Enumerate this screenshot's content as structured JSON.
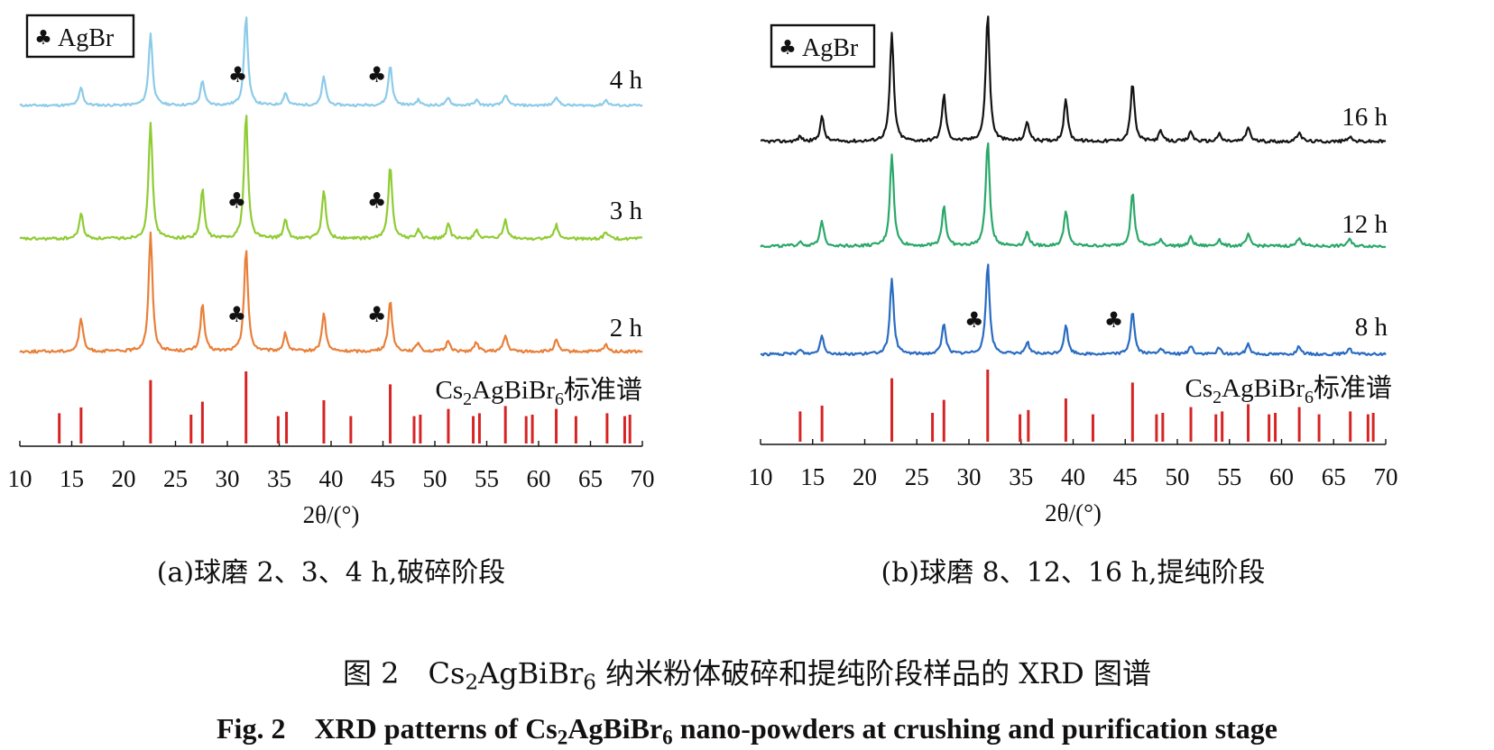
{
  "colors": {
    "h2": "#e8803a",
    "h3": "#8fcc34",
    "h4": "#8ccbe8",
    "h8": "#2a6cc2",
    "h12": "#2aa86a",
    "h16": "#141414",
    "ref": "#d62424"
  },
  "marker_glyph": "♣",
  "chart_data": [
    {
      "type": "line",
      "subtitle": "(a)球磨 2、3、4 h,破碎阶段",
      "xlabel": "2θ/(°)",
      "xlim": [
        10,
        70
      ],
      "xticks": [
        10,
        15,
        20,
        25,
        30,
        35,
        40,
        45,
        50,
        55,
        60,
        65,
        70
      ],
      "legend": {
        "symbol": "♣",
        "label": "AgBr",
        "placement": "top-left"
      },
      "reference": {
        "label_parts": [
          "Cs",
          "2",
          "AgBiBr",
          "6",
          "标准谱"
        ],
        "peaks": [
          {
            "x": 13.8,
            "h": 0.42
          },
          {
            "x": 15.9,
            "h": 0.5
          },
          {
            "x": 22.6,
            "h": 0.88
          },
          {
            "x": 26.5,
            "h": 0.4
          },
          {
            "x": 27.6,
            "h": 0.58
          },
          {
            "x": 31.8,
            "h": 1.0
          },
          {
            "x": 34.9,
            "h": 0.38
          },
          {
            "x": 35.7,
            "h": 0.44
          },
          {
            "x": 39.3,
            "h": 0.6
          },
          {
            "x": 41.9,
            "h": 0.38
          },
          {
            "x": 45.7,
            "h": 0.82
          },
          {
            "x": 48.0,
            "h": 0.38
          },
          {
            "x": 48.6,
            "h": 0.4
          },
          {
            "x": 51.3,
            "h": 0.48
          },
          {
            "x": 53.7,
            "h": 0.38
          },
          {
            "x": 54.3,
            "h": 0.42
          },
          {
            "x": 56.8,
            "h": 0.52
          },
          {
            "x": 58.8,
            "h": 0.38
          },
          {
            "x": 59.4,
            "h": 0.4
          },
          {
            "x": 61.7,
            "h": 0.48
          },
          {
            "x": 63.6,
            "h": 0.38
          },
          {
            "x": 66.6,
            "h": 0.42
          },
          {
            "x": 68.3,
            "h": 0.38
          },
          {
            "x": 68.8,
            "h": 0.4
          }
        ]
      },
      "series": [
        {
          "name": "4 h",
          "color_key": "h4",
          "peaks": [
            [
              15.9,
              0.2
            ],
            [
              22.6,
              0.8
            ],
            [
              27.6,
              0.28
            ],
            [
              31.8,
              1.0
            ],
            [
              35.6,
              0.14
            ],
            [
              39.3,
              0.32
            ],
            [
              45.7,
              0.45
            ],
            [
              48.4,
              0.06
            ],
            [
              51.3,
              0.08
            ],
            [
              54.0,
              0.06
            ],
            [
              56.8,
              0.12
            ],
            [
              61.7,
              0.1
            ],
            [
              66.5,
              0.06
            ]
          ],
          "markers": [
            31.0,
            44.4
          ]
        },
        {
          "name": "3 h",
          "color_key": "h3",
          "peaks": [
            [
              15.9,
              0.22
            ],
            [
              22.6,
              1.0
            ],
            [
              27.6,
              0.42
            ],
            [
              31.8,
              1.08
            ],
            [
              35.6,
              0.16
            ],
            [
              39.3,
              0.42
            ],
            [
              45.7,
              0.64
            ],
            [
              48.4,
              0.08
            ],
            [
              51.3,
              0.12
            ],
            [
              54.0,
              0.08
            ],
            [
              56.8,
              0.16
            ],
            [
              61.7,
              0.12
            ],
            [
              66.5,
              0.06
            ]
          ],
          "markers": [
            30.9,
            44.4
          ]
        },
        {
          "name": "2 h",
          "color_key": "h2",
          "peaks": [
            [
              15.9,
              0.3
            ],
            [
              22.6,
              1.05
            ],
            [
              27.6,
              0.42
            ],
            [
              31.8,
              0.92
            ],
            [
              35.6,
              0.16
            ],
            [
              39.3,
              0.34
            ],
            [
              45.7,
              0.46
            ],
            [
              48.4,
              0.08
            ],
            [
              51.3,
              0.1
            ],
            [
              54.0,
              0.08
            ],
            [
              56.8,
              0.14
            ],
            [
              61.7,
              0.1
            ],
            [
              66.5,
              0.06
            ]
          ],
          "markers": [
            30.9,
            44.4
          ]
        }
      ]
    },
    {
      "type": "line",
      "subtitle": "(b)球磨 8、12、16 h,提纯阶段",
      "xlabel": "2θ/(°)",
      "xlim": [
        10,
        70
      ],
      "xticks": [
        10,
        15,
        20,
        25,
        30,
        35,
        40,
        45,
        50,
        55,
        60,
        65,
        70
      ],
      "legend": {
        "symbol": "♣",
        "label": "AgBr",
        "placement": "top-left"
      },
      "reference": {
        "label_parts": [
          "Cs",
          "2",
          "AgBiBr",
          "6",
          "标准谱"
        ],
        "peaks": [
          {
            "x": 13.8,
            "h": 0.42
          },
          {
            "x": 15.9,
            "h": 0.5
          },
          {
            "x": 22.6,
            "h": 0.88
          },
          {
            "x": 26.5,
            "h": 0.4
          },
          {
            "x": 27.6,
            "h": 0.58
          },
          {
            "x": 31.8,
            "h": 1.0
          },
          {
            "x": 34.9,
            "h": 0.38
          },
          {
            "x": 35.7,
            "h": 0.44
          },
          {
            "x": 39.3,
            "h": 0.6
          },
          {
            "x": 41.9,
            "h": 0.38
          },
          {
            "x": 45.7,
            "h": 0.82
          },
          {
            "x": 48.0,
            "h": 0.38
          },
          {
            "x": 48.6,
            "h": 0.4
          },
          {
            "x": 51.3,
            "h": 0.48
          },
          {
            "x": 53.7,
            "h": 0.38
          },
          {
            "x": 54.3,
            "h": 0.42
          },
          {
            "x": 56.8,
            "h": 0.52
          },
          {
            "x": 58.8,
            "h": 0.38
          },
          {
            "x": 59.4,
            "h": 0.4
          },
          {
            "x": 61.7,
            "h": 0.48
          },
          {
            "x": 63.6,
            "h": 0.38
          },
          {
            "x": 66.6,
            "h": 0.42
          },
          {
            "x": 68.3,
            "h": 0.38
          },
          {
            "x": 68.8,
            "h": 0.4
          }
        ]
      },
      "series": [
        {
          "name": "16 h",
          "color_key": "h16",
          "peaks": [
            [
              13.8,
              0.04
            ],
            [
              15.9,
              0.2
            ],
            [
              22.6,
              0.88
            ],
            [
              27.6,
              0.38
            ],
            [
              31.8,
              1.05
            ],
            [
              35.6,
              0.16
            ],
            [
              39.3,
              0.34
            ],
            [
              45.7,
              0.48
            ],
            [
              48.4,
              0.08
            ],
            [
              51.3,
              0.08
            ],
            [
              54.0,
              0.06
            ],
            [
              56.8,
              0.12
            ],
            [
              61.7,
              0.08
            ],
            [
              66.5,
              0.04
            ]
          ],
          "markers": []
        },
        {
          "name": "12 h",
          "color_key": "h12",
          "peaks": [
            [
              13.8,
              0.04
            ],
            [
              15.9,
              0.22
            ],
            [
              22.6,
              0.82
            ],
            [
              27.6,
              0.36
            ],
            [
              31.8,
              0.95
            ],
            [
              35.6,
              0.12
            ],
            [
              39.3,
              0.32
            ],
            [
              45.7,
              0.48
            ],
            [
              48.4,
              0.06
            ],
            [
              51.3,
              0.08
            ],
            [
              54.0,
              0.06
            ],
            [
              56.8,
              0.1
            ],
            [
              61.7,
              0.08
            ],
            [
              66.5,
              0.06
            ]
          ],
          "markers": []
        },
        {
          "name": "8 h",
          "color_key": "h8",
          "peaks": [
            [
              13.8,
              0.04
            ],
            [
              15.9,
              0.18
            ],
            [
              22.6,
              0.72
            ],
            [
              27.6,
              0.3
            ],
            [
              31.8,
              0.88
            ],
            [
              35.6,
              0.12
            ],
            [
              39.3,
              0.28
            ],
            [
              45.7,
              0.42
            ],
            [
              48.4,
              0.06
            ],
            [
              51.3,
              0.08
            ],
            [
              54.0,
              0.06
            ],
            [
              56.8,
              0.1
            ],
            [
              61.7,
              0.08
            ],
            [
              66.5,
              0.06
            ]
          ],
          "markers": [
            30.5,
            43.9
          ]
        }
      ]
    }
  ],
  "caption": {
    "zh": {
      "prefix": "图 2　Cs",
      "sub1": "2",
      "mid": "AgBiBr",
      "sub2": "6",
      "suffix": " 纳米粉体破碎和提纯阶段样品的 XRD 图谱"
    },
    "en": {
      "prefix": "Fig. 2　XRD patterns of Cs",
      "sub1": "2",
      "mid": "AgBiBr",
      "sub2": "6",
      "suffix": " nano-powders at crushing and purification stage"
    }
  }
}
